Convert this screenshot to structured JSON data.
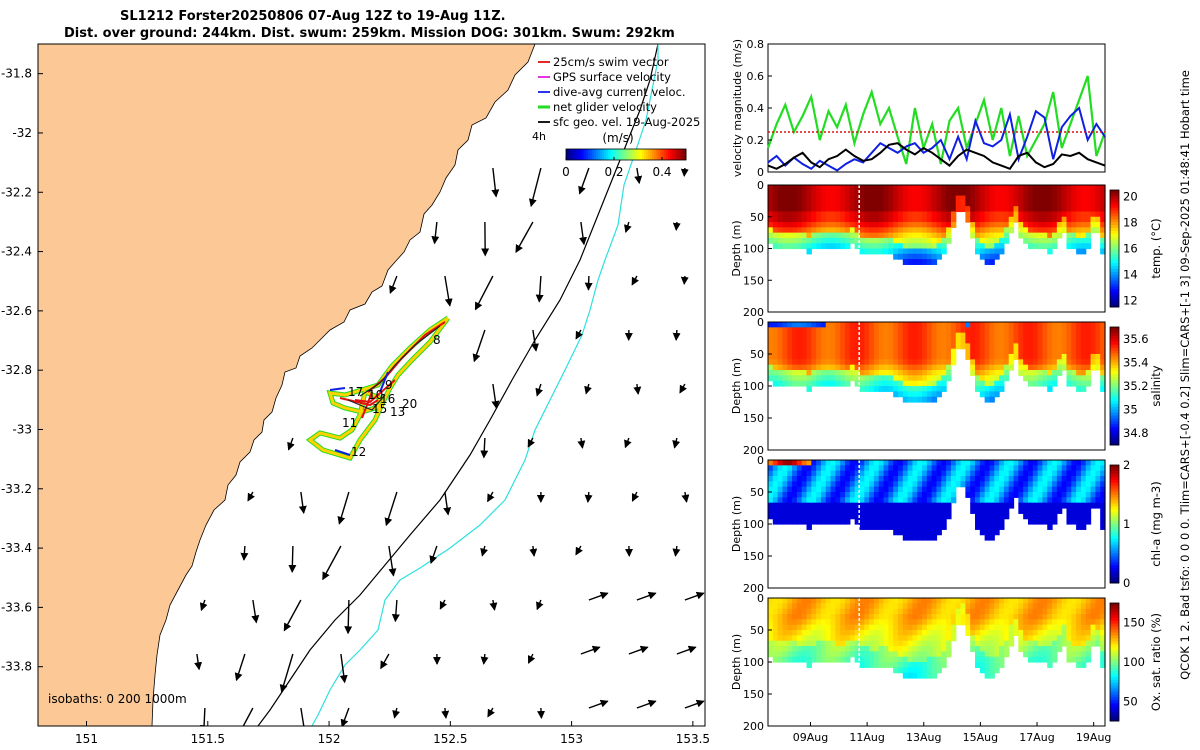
{
  "title": {
    "line1": "SL1212 Forster20250806 07-Aug 12Z to 19-Aug 11Z.",
    "line2": "Dist. over ground: 244km. Dist. swum: 259km. Mission DOG: 301km. Swum: 292km"
  },
  "side_label": "QCOK 1  2. Bad tsfo: 0  0  0  0. Tlim=CARS+[-0.4 0.2] Slim=CARS+[-1 3] 09-Sep-2025 01:48:41 Hobart time",
  "colors": {
    "land": "#fbc896",
    "isobath_0": "#000000",
    "isobath_200": "#000000",
    "isobath_1000": "#2ee0e0",
    "swim_vector": "#e01010",
    "gps_vector": "#e020e0",
    "dac_vector": "#1020e0",
    "net_velocity": "#22dd22",
    "geo_arrow": "#000000"
  },
  "map": {
    "xlim": [
      150.8,
      153.55
    ],
    "ylim": [
      -34.0,
      -31.7
    ],
    "xticks": [
      "151",
      "151.5",
      "152",
      "152.5",
      "153",
      "153.5"
    ],
    "yticks": [
      "-31.8",
      "-32",
      "-32.2",
      "-32.4",
      "-32.6",
      "-32.8",
      "-33",
      "-33.2",
      "-33.4",
      "-33.6",
      "-33.8"
    ],
    "legend": [
      {
        "label": "25cm/s swim vector",
        "color": "#e01010"
      },
      {
        "label": "GPS surface velocity",
        "color": "#e020e0"
      },
      {
        "label": "dive-avg current veloc.",
        "color": "#1020e0"
      },
      {
        "label": "net glider velocity",
        "color": "#22dd22"
      },
      {
        "label": "sfc geo. vel. 19-Aug-2025",
        "color": "#000000"
      }
    ],
    "legend_extra": "4h",
    "colorbar_label": "(m/s)",
    "colorbar_ticks": [
      "0",
      "0.2",
      "0.4"
    ],
    "isobath_text": "isobaths: 0   200   1000m",
    "day_labels": [
      "8",
      "9",
      "10",
      "11",
      "12",
      "13",
      "15",
      "16",
      "17",
      "20"
    ]
  },
  "chart_data": [
    {
      "type": "line",
      "panel": "velocity",
      "ylabel": "velocity magnitude (m/s)",
      "ylim": [
        0,
        0.8
      ],
      "yticks": [
        "0",
        "0.2",
        "0.4",
        "0.6",
        "0.8"
      ],
      "xlim_days": [
        7.5,
        19.4
      ],
      "series": [
        {
          "color": "#22dd22",
          "values": [
            0.15,
            0.3,
            0.42,
            0.25,
            0.35,
            0.47,
            0.2,
            0.38,
            0.28,
            0.42,
            0.18,
            0.36,
            0.5,
            0.3,
            0.4,
            0.22,
            0.05,
            0.4,
            0.15,
            0.3,
            0.05,
            0.32,
            0.4,
            0.15,
            0.3,
            0.45,
            0.2,
            0.4,
            0.1,
            0.35,
            0.1,
            0.2,
            0.3,
            0.5,
            0.15,
            0.3,
            0.45,
            0.6,
            0.1,
            0.25
          ]
        },
        {
          "color": "#1020e0",
          "values": [
            0.06,
            0.1,
            0.04,
            0.09,
            0.05,
            0.02,
            0.07,
            0.04,
            0.01,
            0.05,
            0.08,
            0.06,
            0.12,
            0.18,
            0.15,
            0.12,
            0.16,
            0.18,
            0.12,
            0.15,
            0.2,
            0.08,
            0.22,
            0.08,
            0.32,
            0.18,
            0.16,
            0.2,
            0.36,
            0.08,
            0.22,
            0.38,
            0.34,
            0.08,
            0.28,
            0.35,
            0.4,
            0.2,
            0.3,
            0.22
          ]
        },
        {
          "color": "#000000",
          "values": [
            0.04,
            0.02,
            0.05,
            0.09,
            0.12,
            0.06,
            0.03,
            0.08,
            0.1,
            0.14,
            0.1,
            0.07,
            0.08,
            0.12,
            0.17,
            0.18,
            0.14,
            0.11,
            0.15,
            0.12,
            0.08,
            0.04,
            0.1,
            0.14,
            0.12,
            0.1,
            0.06,
            0.04,
            0.02,
            0.1,
            0.12,
            0.06,
            0.03,
            0.05,
            0.11,
            0.1,
            0.12,
            0.08,
            0.06,
            0.04
          ]
        },
        {
          "color": "#e01010",
          "values": [
            0.25,
            0.25
          ]
        }
      ]
    },
    {
      "type": "heatmap",
      "panel": "temperature",
      "ylabel": "Depth (m)",
      "ylim": [
        0,
        200
      ],
      "yticks": [
        "0",
        "50",
        "100",
        "150",
        "200"
      ],
      "colorbar_label": "temp. (°C)",
      "colorbar_ticks": [
        "12",
        "14",
        "16",
        "18",
        "20"
      ],
      "crange": [
        11.5,
        20.5
      ]
    },
    {
      "type": "heatmap",
      "panel": "salinity",
      "ylabel": "Depth (m)",
      "ylim": [
        0,
        200
      ],
      "yticks": [
        "0",
        "50",
        "100",
        "150",
        "200"
      ],
      "colorbar_label": "salinity",
      "colorbar_ticks": [
        "34.8",
        "35",
        "35.2",
        "35.4",
        "35.6"
      ],
      "crange": [
        34.7,
        35.7
      ]
    },
    {
      "type": "heatmap",
      "panel": "chla",
      "ylabel": "Depth (m)",
      "ylim": [
        0,
        200
      ],
      "yticks": [
        "0",
        "50",
        "100",
        "150",
        "200"
      ],
      "colorbar_label": "chl-a (mg m-3)",
      "colorbar_ticks": [
        "0",
        "1",
        "2"
      ],
      "crange": [
        0,
        2
      ]
    },
    {
      "type": "heatmap",
      "panel": "oxygen",
      "ylabel": "Depth (m)",
      "ylim": [
        0,
        200
      ],
      "yticks": [
        "0",
        "50",
        "100",
        "150",
        "200"
      ],
      "colorbar_label": "Ox. sat. ratio (%)",
      "colorbar_ticks": [
        "50",
        "100",
        "150"
      ],
      "crange": [
        25,
        175
      ],
      "xticks": [
        "09Aug",
        "11Aug",
        "13Aug",
        "15Aug",
        "17Aug",
        "19Aug"
      ]
    }
  ],
  "profile_bottom_depth_m": [
    [
      7.5,
      95
    ],
    [
      8.0,
      98
    ],
    [
      8.5,
      100
    ],
    [
      8.9,
      105
    ],
    [
      9.3,
      98
    ],
    [
      9.7,
      100
    ],
    [
      10.1,
      102
    ],
    [
      10.5,
      95
    ],
    [
      10.8,
      105
    ],
    [
      11.2,
      110
    ],
    [
      11.6,
      108
    ],
    [
      12.0,
      115
    ],
    [
      12.4,
      125
    ],
    [
      12.8,
      128
    ],
    [
      13.2,
      125
    ],
    [
      13.5,
      120
    ],
    [
      13.8,
      105
    ],
    [
      14.0,
      75
    ],
    [
      14.2,
      45
    ],
    [
      14.35,
      35
    ],
    [
      14.5,
      50
    ],
    [
      14.8,
      100
    ],
    [
      15.2,
      125
    ],
    [
      15.6,
      118
    ],
    [
      15.9,
      95
    ],
    [
      16.1,
      70
    ],
    [
      16.25,
      60
    ],
    [
      16.5,
      90
    ],
    [
      16.8,
      100
    ],
    [
      17.2,
      102
    ],
    [
      17.5,
      105
    ],
    [
      17.8,
      85
    ],
    [
      17.9,
      60
    ],
    [
      18.1,
      100
    ],
    [
      18.5,
      108
    ],
    [
      18.8,
      100
    ],
    [
      19.0,
      70
    ],
    [
      19.1,
      70
    ],
    [
      19.3,
      110
    ],
    [
      19.4,
      115
    ]
  ]
}
